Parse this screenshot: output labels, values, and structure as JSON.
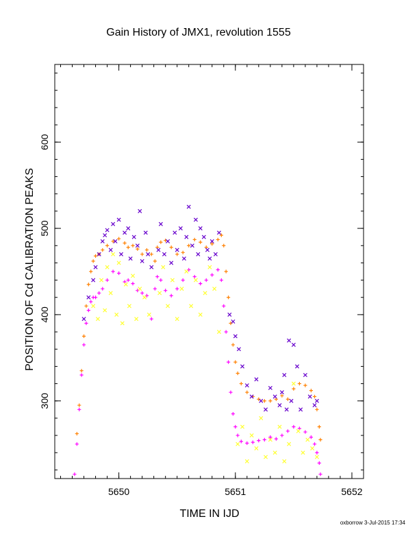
{
  "chart_data": {
    "type": "scatter",
    "title": "Gain History of JMX1, revolution 1555",
    "xlabel": "TIME IN IJD",
    "ylabel": "POSITION OF Cd CALIBRATION PEAKS",
    "xlim": [
      5649.45,
      5652.1
    ],
    "ylim": [
      210,
      690
    ],
    "x_ticks": [
      5650,
      5651,
      5652
    ],
    "x_tick_labels": [
      "5650",
      "5651",
      "5652"
    ],
    "y_ticks": [
      300,
      400,
      500,
      600
    ],
    "y_tick_labels": [
      "300",
      "400",
      "500",
      "600"
    ],
    "grid": false,
    "legend": "none",
    "series": [
      {
        "marker": "plus",
        "color": "#ff8000",
        "x": [
          5649.64,
          5649.66,
          5649.68,
          5649.7,
          5649.72,
          5649.74,
          5649.76,
          5649.78,
          5649.8,
          5649.83,
          5649.86,
          5649.9,
          5649.95,
          5650.0,
          5650.05,
          5650.08,
          5650.12,
          5650.16,
          5650.2,
          5650.24,
          5650.28,
          5650.31,
          5650.33,
          5650.36,
          5650.4,
          5650.45,
          5650.5,
          5650.55,
          5650.6,
          5650.65,
          5650.7,
          5650.75,
          5650.8,
          5650.85,
          5650.88,
          5650.9,
          5650.92,
          5650.94,
          5650.96,
          5650.98,
          5651.0,
          5651.02,
          5651.05,
          5651.1,
          5651.15,
          5651.2,
          5651.25,
          5651.3,
          5651.35,
          5651.4,
          5651.45,
          5651.5,
          5651.55,
          5651.6,
          5651.65,
          5651.68,
          5651.7,
          5651.72,
          5651.73
        ],
        "y": [
          262,
          295,
          335,
          375,
          410,
          435,
          450,
          462,
          468,
          470,
          475,
          480,
          485,
          488,
          483,
          478,
          480,
          476,
          470,
          475,
          470,
          462,
          478,
          484,
          486,
          478,
          470,
          472,
          480,
          487,
          484,
          478,
          482,
          487,
          492,
          480,
          450,
          420,
          390,
          365,
          345,
          332,
          320,
          310,
          305,
          302,
          300,
          300,
          302,
          306,
          302,
          314,
          320,
          318,
          312,
          305,
          290,
          270,
          255
        ]
      },
      {
        "marker": "plus",
        "color": "#ff00ff",
        "x": [
          5649.62,
          5649.64,
          5649.66,
          5649.68,
          5649.7,
          5649.72,
          5649.74,
          5649.76,
          5649.78,
          5649.8,
          5649.83,
          5649.86,
          5649.9,
          5649.95,
          5650.0,
          5650.05,
          5650.08,
          5650.12,
          5650.16,
          5650.2,
          5650.24,
          5650.28,
          5650.31,
          5650.33,
          5650.36,
          5650.4,
          5650.45,
          5650.5,
          5650.55,
          5650.6,
          5650.65,
          5650.7,
          5650.75,
          5650.8,
          5650.85,
          5650.88,
          5650.9,
          5650.92,
          5650.94,
          5650.96,
          5650.98,
          5651.0,
          5651.02,
          5651.05,
          5651.1,
          5651.15,
          5651.2,
          5651.25,
          5651.3,
          5651.35,
          5651.4,
          5651.45,
          5651.5,
          5651.55,
          5651.6,
          5651.65,
          5651.68,
          5651.7,
          5651.72,
          5651.73
        ],
        "y": [
          215,
          250,
          290,
          330,
          365,
          390,
          405,
          415,
          420,
          420,
          425,
          430,
          440,
          450,
          448,
          438,
          440,
          436,
          428,
          425,
          422,
          395,
          430,
          444,
          440,
          428,
          422,
          430,
          440,
          452,
          444,
          436,
          440,
          446,
          452,
          440,
          410,
          380,
          345,
          310,
          285,
          270,
          260,
          253,
          251,
          252,
          254,
          255,
          258,
          256,
          260,
          265,
          270,
          268,
          264,
          258,
          250,
          240,
          228,
          215
        ]
      },
      {
        "marker": "cross",
        "color": "#6600cc",
        "x": [
          5649.7,
          5649.74,
          5649.78,
          5649.8,
          5649.83,
          5649.86,
          5649.88,
          5649.9,
          5649.93,
          5649.95,
          5649.97,
          5650.0,
          5650.02,
          5650.05,
          5650.08,
          5650.1,
          5650.13,
          5650.16,
          5650.18,
          5650.2,
          5650.23,
          5650.25,
          5650.28,
          5650.34,
          5650.36,
          5650.39,
          5650.42,
          5650.45,
          5650.48,
          5650.5,
          5650.53,
          5650.56,
          5650.58,
          5650.6,
          5650.63,
          5650.66,
          5650.68,
          5650.7,
          5650.73,
          5650.76,
          5650.78,
          5650.8,
          5650.83,
          5650.86,
          5650.95,
          5650.98,
          5651.0,
          5651.03,
          5651.06,
          5651.1,
          5651.14,
          5651.18,
          5651.22,
          5651.26,
          5651.3,
          5651.34,
          5651.38,
          5651.4,
          5651.42,
          5651.44,
          5651.46,
          5651.48,
          5651.5,
          5651.53,
          5651.56,
          5651.6,
          5651.64,
          5651.68,
          5651.7
        ],
        "y": [
          395,
          420,
          440,
          455,
          470,
          485,
          492,
          498,
          475,
          505,
          485,
          510,
          470,
          495,
          500,
          465,
          490,
          480,
          520,
          462,
          495,
          470,
          455,
          475,
          505,
          470,
          485,
          460,
          495,
          475,
          500,
          465,
          490,
          525,
          480,
          510,
          470,
          500,
          490,
          475,
          465,
          485,
          470,
          495,
          400,
          392,
          375,
          360,
          340,
          318,
          305,
          325,
          300,
          290,
          315,
          305,
          295,
          310,
          330,
          290,
          370,
          300,
          365,
          340,
          290,
          330,
          305,
          295,
          300
        ]
      },
      {
        "marker": "cross",
        "color": "#ffff33",
        "x": [
          5649.78,
          5649.82,
          5649.85,
          5649.88,
          5649.9,
          5649.93,
          5649.95,
          5649.98,
          5650.0,
          5650.03,
          5650.06,
          5650.09,
          5650.12,
          5650.15,
          5650.18,
          5650.22,
          5650.26,
          5650.35,
          5650.38,
          5650.42,
          5650.46,
          5650.5,
          5650.54,
          5650.58,
          5650.62,
          5650.66,
          5650.7,
          5650.74,
          5650.78,
          5650.82,
          5650.86,
          5651.02,
          5651.06,
          5651.1,
          5651.14,
          5651.18,
          5651.22,
          5651.26,
          5651.3,
          5651.34,
          5651.38,
          5651.42,
          5651.46,
          5651.5,
          5651.54,
          5651.58,
          5651.62,
          5651.66,
          5651.7
        ],
        "y": [
          410,
          395,
          440,
          405,
          455,
          425,
          470,
          400,
          460,
          390,
          435,
          410,
          445,
          395,
          430,
          420,
          400,
          425,
          455,
          410,
          440,
          395,
          430,
          450,
          410,
          440,
          400,
          425,
          455,
          430,
          380,
          250,
          270,
          230,
          260,
          245,
          280,
          235,
          255,
          240,
          270,
          230,
          250,
          320,
          265,
          240,
          255,
          245,
          235
        ]
      }
    ]
  },
  "footer": {
    "credit": "oxborrow  3-Jul-2015 17:34"
  }
}
